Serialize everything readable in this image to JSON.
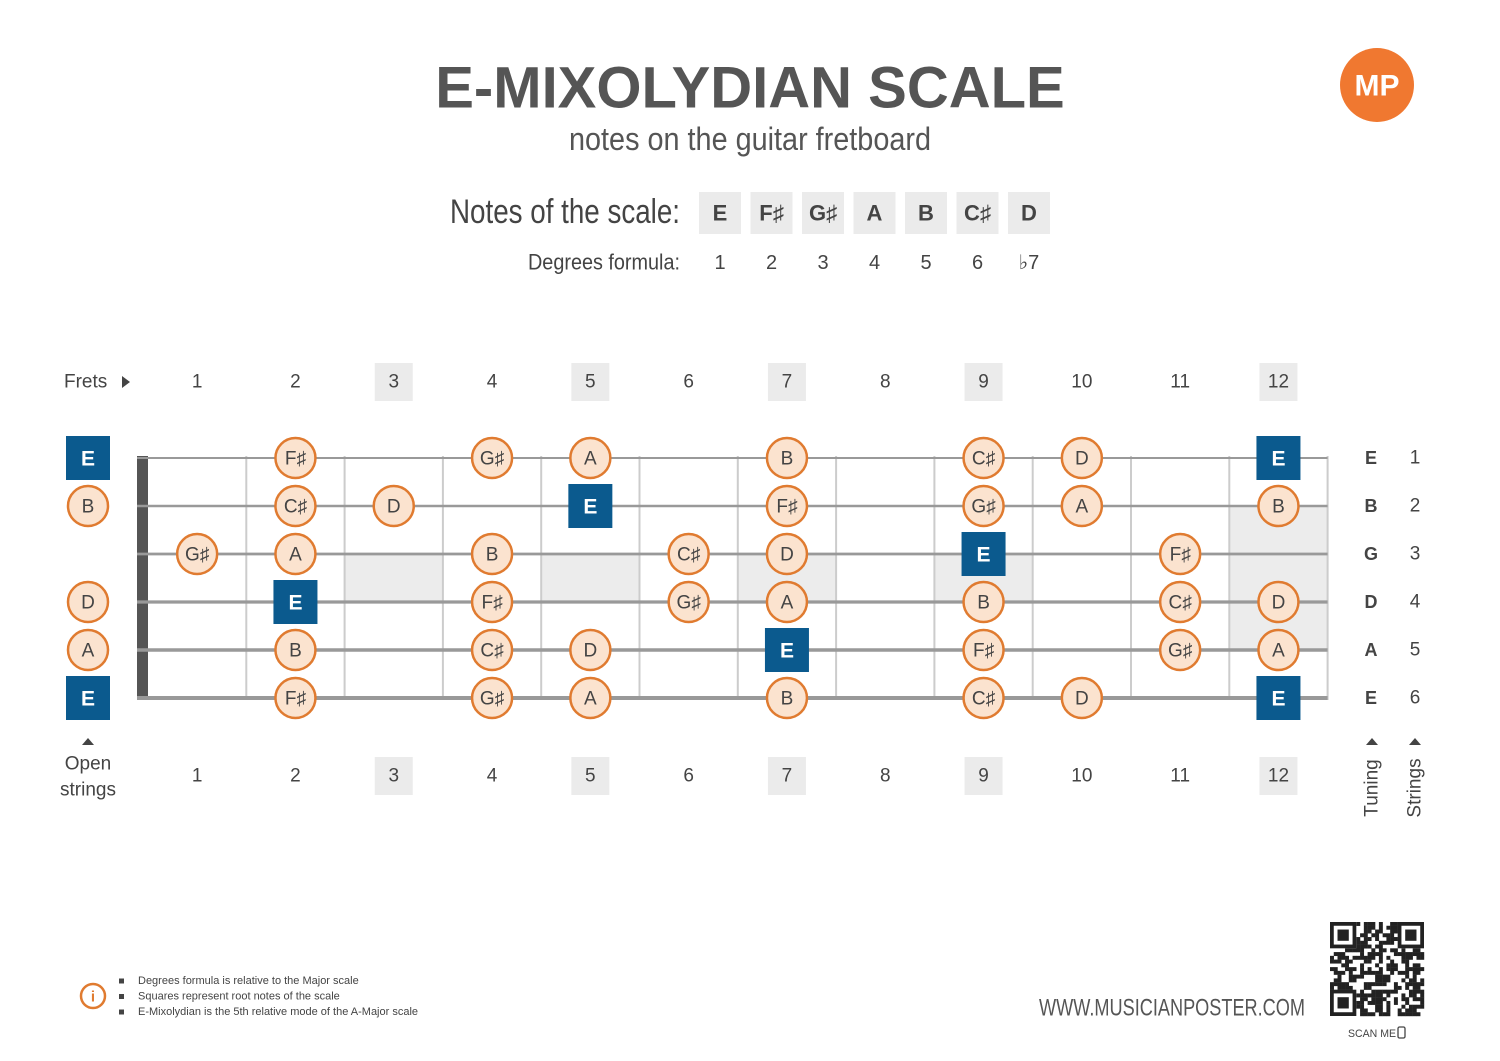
{
  "header": {
    "title": "E-MIXOLYDIAN SCALE",
    "subtitle": "notes on the guitar fretboard",
    "logo": "MP"
  },
  "scale": {
    "notes_label": "Notes of the scale:",
    "notes": [
      "E",
      "F♯",
      "G♯",
      "A",
      "B",
      "C♯",
      "D"
    ],
    "degrees_label": "Degrees formula:",
    "degrees": [
      "1",
      "2",
      "3",
      "4",
      "5",
      "6",
      "♭7"
    ]
  },
  "fretboard": {
    "frets_label": "Frets",
    "frets": [
      1,
      2,
      3,
      4,
      5,
      6,
      7,
      8,
      9,
      10,
      11,
      12
    ],
    "open_label_lines": [
      "Open",
      "strings"
    ],
    "tuning_label": "Tuning",
    "strings_label": "Strings",
    "strings": [
      {
        "tuning": "E",
        "number": 1,
        "notes": [
          "E",
          null,
          "F♯",
          null,
          "G♯",
          "A",
          null,
          "B",
          null,
          "C♯",
          "D",
          null,
          "E"
        ]
      },
      {
        "tuning": "B",
        "number": 2,
        "notes": [
          "B",
          null,
          "C♯",
          "D",
          null,
          "E",
          null,
          "F♯",
          null,
          "G♯",
          "A",
          null,
          "B"
        ]
      },
      {
        "tuning": "G",
        "number": 3,
        "notes": [
          null,
          "G♯",
          "A",
          null,
          "B",
          null,
          "C♯",
          "D",
          null,
          "E",
          null,
          "F♯",
          null
        ]
      },
      {
        "tuning": "D",
        "number": 4,
        "notes": [
          "D",
          null,
          "E",
          null,
          "F♯",
          null,
          "G♯",
          "A",
          null,
          "B",
          null,
          "C♯",
          "D"
        ]
      },
      {
        "tuning": "A",
        "number": 5,
        "notes": [
          "A",
          null,
          "B",
          null,
          "C♯",
          "D",
          null,
          "E",
          null,
          "F♯",
          null,
          "G♯",
          "A"
        ]
      },
      {
        "tuning": "E",
        "number": 6,
        "notes": [
          "E",
          null,
          "F♯",
          null,
          "G♯",
          "A",
          null,
          "B",
          null,
          "C♯",
          "D",
          null,
          "E"
        ]
      }
    ]
  },
  "footer": {
    "notes": [
      "Degrees formula is relative to the Major scale",
      "Squares represent root notes of the scale",
      "E-Mixolydian is the 5th relative mode of the A-Major scale"
    ],
    "website": "WWW.MUSICIANPOSTER.COM",
    "scan": "SCAN ME"
  }
}
